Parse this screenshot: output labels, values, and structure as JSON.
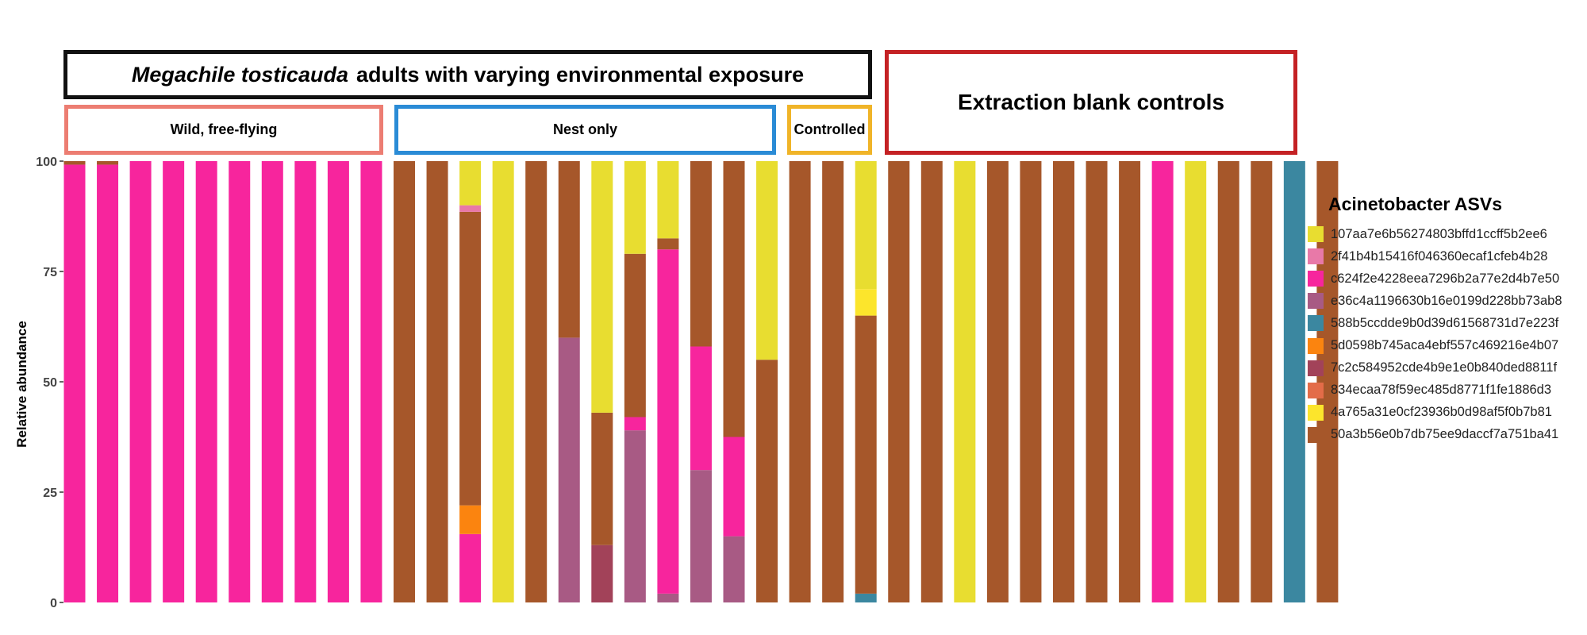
{
  "header": {
    "title_species": "Megachile tosticauda",
    "title_rest": "adults with varying environmental exposure",
    "group_wild": "Wild, free-flying",
    "group_nest": "Nest only",
    "group_controlled": "Controlled",
    "blank_controls": "Extraction blank controls"
  },
  "chart_data": {
    "type": "bar",
    "stacked": true,
    "ylabel": "Relative abundance",
    "xlabel": "",
    "ylim": [
      0,
      100
    ],
    "yticks": [
      0,
      25,
      50,
      75,
      100
    ],
    "legend_title": "Acinetobacter ASVs",
    "legend_placement": "right",
    "series": [
      {
        "name": "107aa7e6b56274803bffd1ccff5b2ee6",
        "color": "#e8dd30"
      },
      {
        "name": "2f41b4b15416f046360ecaf1cfeb4b28",
        "color": "#e879a8"
      },
      {
        "name": "c624f2e4228eea7296b2a77e2d4b7e50",
        "color": "#f7259d"
      },
      {
        "name": "e36c4a1196630b16e0199d228bb73ab8",
        "color": "#a85a84"
      },
      {
        "name": "588b5ccdde9b0d39d61568731d7e223f",
        "color": "#3b87a0"
      },
      {
        "name": "5d0598b745aca4ebf557c469216e4b07",
        "color": "#fb840f"
      },
      {
        "name": "7c2c584952cde4b9e1e0b840ded8811f",
        "color": "#a24259"
      },
      {
        "name": "834ecaa78f59ec485d8771f1fe1886d3",
        "color": "#e36c48"
      },
      {
        "name": "4a765a31e0cf23936b0d98af5f0b7b81",
        "color": "#fce52c"
      },
      {
        "name": "50a3b56e0b7db75ee9daccf7a751ba41",
        "color": "#a6572a"
      }
    ],
    "groups": [
      {
        "name": "Wild, free-flying",
        "bars": [
          0,
          9
        ]
      },
      {
        "name": "Nest only",
        "bars": [
          10,
          21
        ]
      },
      {
        "name": "Controlled",
        "bars": [
          22,
          24
        ]
      },
      {
        "name": "Extraction blank controls",
        "bars": [
          25,
          37
        ]
      }
    ],
    "bars": [
      [
        {
          "s": 2,
          "v": 99.2
        },
        {
          "s": 9,
          "v": 0.8
        }
      ],
      [
        {
          "s": 2,
          "v": 99.2
        },
        {
          "s": 9,
          "v": 0.8
        }
      ],
      [
        {
          "s": 2,
          "v": 100
        }
      ],
      [
        {
          "s": 2,
          "v": 100
        }
      ],
      [
        {
          "s": 2,
          "v": 100
        }
      ],
      [
        {
          "s": 2,
          "v": 100
        }
      ],
      [
        {
          "s": 2,
          "v": 100
        }
      ],
      [
        {
          "s": 2,
          "v": 100
        }
      ],
      [
        {
          "s": 2,
          "v": 100
        }
      ],
      [
        {
          "s": 2,
          "v": 100
        }
      ],
      [
        {
          "s": 9,
          "v": 100
        }
      ],
      [
        {
          "s": 9,
          "v": 100
        }
      ],
      [
        {
          "s": 2,
          "v": 15.5
        },
        {
          "s": 5,
          "v": 6.5
        },
        {
          "s": 9,
          "v": 66.5
        },
        {
          "s": 1,
          "v": 1.5
        },
        {
          "s": 0,
          "v": 10
        }
      ],
      [
        {
          "s": 0,
          "v": 100
        }
      ],
      [
        {
          "s": 9,
          "v": 100
        }
      ],
      [
        {
          "s": 3,
          "v": 60
        },
        {
          "s": 9,
          "v": 40
        }
      ],
      [
        {
          "s": 6,
          "v": 13
        },
        {
          "s": 9,
          "v": 30
        },
        {
          "s": 0,
          "v": 57
        }
      ],
      [
        {
          "s": 3,
          "v": 39
        },
        {
          "s": 2,
          "v": 3
        },
        {
          "s": 9,
          "v": 37
        },
        {
          "s": 0,
          "v": 21
        }
      ],
      [
        {
          "s": 3,
          "v": 2
        },
        {
          "s": 2,
          "v": 78
        },
        {
          "s": 9,
          "v": 2.5
        },
        {
          "s": 0,
          "v": 17.5
        }
      ],
      [
        {
          "s": 3,
          "v": 30
        },
        {
          "s": 2,
          "v": 28
        },
        {
          "s": 9,
          "v": 42
        }
      ],
      [
        {
          "s": 3,
          "v": 15
        },
        {
          "s": 2,
          "v": 22.5
        },
        {
          "s": 9,
          "v": 62.5
        }
      ],
      [
        {
          "s": 9,
          "v": 55
        },
        {
          "s": 0,
          "v": 45
        }
      ],
      [
        {
          "s": 9,
          "v": 100
        }
      ],
      [
        {
          "s": 9,
          "v": 100
        }
      ],
      [
        {
          "s": 4,
          "v": 2
        },
        {
          "s": 9,
          "v": 63
        },
        {
          "s": 8,
          "v": 6
        },
        {
          "s": 0,
          "v": 29
        }
      ],
      [
        {
          "s": 9,
          "v": 100
        }
      ],
      [
        {
          "s": 9,
          "v": 100
        }
      ],
      [
        {
          "s": 0,
          "v": 100
        }
      ],
      [
        {
          "s": 9,
          "v": 100
        }
      ],
      [
        {
          "s": 9,
          "v": 100
        }
      ],
      [
        {
          "s": 9,
          "v": 100
        }
      ],
      [
        {
          "s": 9,
          "v": 100
        }
      ],
      [
        {
          "s": 9,
          "v": 100
        }
      ],
      [
        {
          "s": 2,
          "v": 100
        }
      ],
      [
        {
          "s": 0,
          "v": 100
        }
      ],
      [
        {
          "s": 9,
          "v": 100
        }
      ],
      [
        {
          "s": 9,
          "v": 100
        }
      ],
      [
        {
          "s": 4,
          "v": 100
        }
      ],
      [
        {
          "s": 9,
          "v": 100
        }
      ]
    ]
  }
}
